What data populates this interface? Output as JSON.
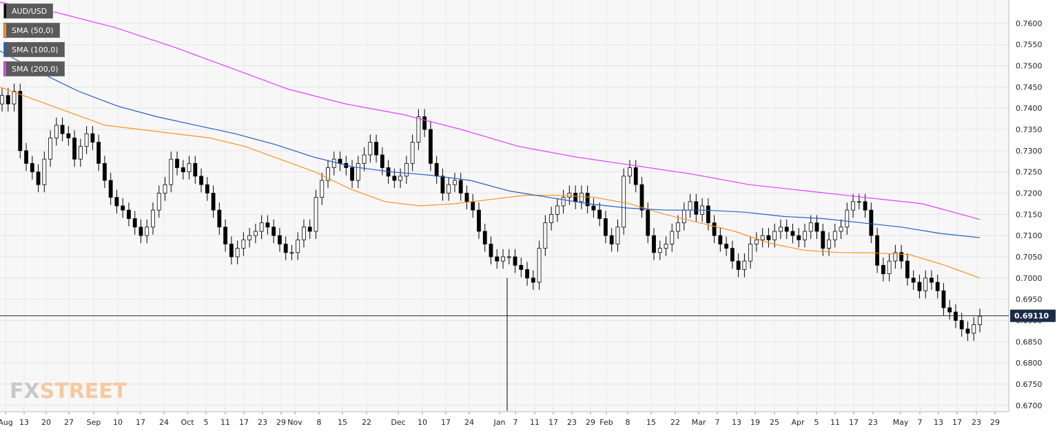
{
  "symbol": "AUD/USD",
  "legend": [
    {
      "label": "AUD/USD",
      "color": "#000000"
    },
    {
      "label": "SMA (50,0)",
      "color": "#f7931e"
    },
    {
      "label": "SMA (100,0)",
      "color": "#1f5fbf"
    },
    {
      "label": "SMA (200,0)",
      "color": "#e040fb"
    }
  ],
  "watermark": {
    "part1": "FX",
    "part2": "STREET"
  },
  "chart_data": {
    "type": "candlestick",
    "title": "",
    "xlabel": "",
    "ylabel": "",
    "ylim": [
      0.6685,
      0.7655
    ],
    "yticks": [
      0.76,
      0.755,
      0.75,
      0.745,
      0.74,
      0.735,
      0.73,
      0.725,
      0.72,
      0.715,
      0.71,
      0.705,
      0.7,
      0.695,
      0.69,
      0.685,
      0.68,
      0.675,
      0.67
    ],
    "xticks": [
      "Aug",
      "13",
      "20",
      "27",
      "Sep",
      "10",
      "17",
      "24",
      "Oct",
      "5",
      "11",
      "17",
      "23",
      "29",
      "Nov",
      "8",
      "15",
      "22",
      "Dec",
      "10",
      "17",
      "24",
      "Jan",
      "7",
      "11",
      "17",
      "23",
      "29",
      "Feb",
      "8",
      "15",
      "22",
      "Mar",
      "7",
      "13",
      "19",
      "25",
      "Apr",
      "5",
      "11",
      "17",
      "23",
      "May",
      "7",
      "13",
      "17",
      "23",
      "29"
    ],
    "grid": true,
    "current_price": {
      "label": "0.69110",
      "value": 0.6911
    },
    "candle_closes": [
      0.743,
      0.741,
      0.744,
      0.73,
      0.727,
      0.725,
      0.722,
      0.728,
      0.733,
      0.736,
      0.734,
      0.733,
      0.728,
      0.731,
      0.734,
      0.732,
      0.727,
      0.723,
      0.719,
      0.717,
      0.716,
      0.714,
      0.712,
      0.71,
      0.712,
      0.716,
      0.72,
      0.722,
      0.728,
      0.726,
      0.725,
      0.727,
      0.724,
      0.722,
      0.72,
      0.716,
      0.712,
      0.708,
      0.705,
      0.707,
      0.709,
      0.71,
      0.711,
      0.713,
      0.712,
      0.71,
      0.708,
      0.706,
      0.706,
      0.709,
      0.712,
      0.711,
      0.719,
      0.723,
      0.726,
      0.728,
      0.727,
      0.726,
      0.723,
      0.727,
      0.729,
      0.732,
      0.729,
      0.726,
      0.724,
      0.723,
      0.724,
      0.727,
      0.732,
      0.738,
      0.735,
      0.727,
      0.724,
      0.72,
      0.722,
      0.723,
      0.72,
      0.718,
      0.716,
      0.711,
      0.708,
      0.705,
      0.704,
      0.705,
      0.705,
      0.703,
      0.702,
      0.7,
      0.699,
      0.707,
      0.713,
      0.715,
      0.717,
      0.719,
      0.72,
      0.718,
      0.72,
      0.717,
      0.716,
      0.714,
      0.71,
      0.708,
      0.712,
      0.724,
      0.726,
      0.722,
      0.716,
      0.71,
      0.706,
      0.707,
      0.708,
      0.711,
      0.713,
      0.716,
      0.718,
      0.715,
      0.717,
      0.713,
      0.71,
      0.708,
      0.707,
      0.704,
      0.702,
      0.704,
      0.708,
      0.709,
      0.71,
      0.709,
      0.711,
      0.712,
      0.711,
      0.71,
      0.709,
      0.711,
      0.713,
      0.711,
      0.707,
      0.709,
      0.711,
      0.712,
      0.716,
      0.718,
      0.718,
      0.716,
      0.71,
      0.703,
      0.701,
      0.704,
      0.706,
      0.704,
      0.7,
      0.699,
      0.697,
      0.7,
      0.699,
      0.697,
      0.693,
      0.692,
      0.69,
      0.688,
      0.687,
      0.689,
      0.691
    ],
    "sma_50": [
      0.745,
      0.742,
      0.739,
      0.736,
      0.735,
      0.734,
      0.733,
      0.731,
      0.728,
      0.725,
      0.721,
      0.718,
      0.717,
      0.7175,
      0.7185,
      0.7195,
      0.7195,
      0.719,
      0.7175,
      0.715,
      0.713,
      0.711,
      0.7082,
      0.7065,
      0.706,
      0.7059,
      0.7055,
      0.703,
      0.7
    ]
  },
  "series_colors": {
    "sma_50": "#f7931e",
    "sma_100": "#1f5fbf",
    "sma_200": "#e040fb",
    "bull": "#ffffff",
    "bear": "#000000"
  }
}
